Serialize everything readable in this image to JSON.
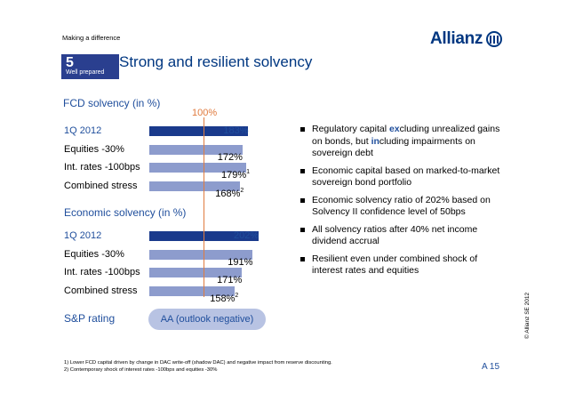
{
  "header": {
    "topline": "Making a difference",
    "logo": "Allianz"
  },
  "chapter": {
    "number": "5",
    "label": "Well prepared"
  },
  "title": "Strong and resilient solvency",
  "reference": {
    "label": "100%"
  },
  "fcd": {
    "title": "FCD solvency (in %)",
    "rows": [
      {
        "label": "1Q 2012",
        "value": "183%",
        "sup": ""
      },
      {
        "label": "Equities -30%",
        "value": "172%",
        "sup": ""
      },
      {
        "label": "Int. rates -100bps",
        "value": "179%",
        "sup": "1"
      },
      {
        "label": "Combined stress",
        "value": "168%",
        "sup": "2"
      }
    ]
  },
  "economic": {
    "title": "Economic solvency (in %)",
    "rows": [
      {
        "label": "1Q 2012",
        "value": "202%",
        "sup": ""
      },
      {
        "label": "Equities -30%",
        "value": "191%",
        "sup": ""
      },
      {
        "label": "Int. rates -100bps",
        "value": "171%",
        "sup": ""
      },
      {
        "label": "Combined stress",
        "value": "158%",
        "sup": "2"
      }
    ]
  },
  "rating": {
    "label": "S&P rating",
    "value": "AA (outlook negative)"
  },
  "bullets": {
    "b1_pre": "Regulatory capital ",
    "b1_hl1": "ex",
    "b1_mid": "cluding unrealized gains on bonds, but ",
    "b1_hl2": "in",
    "b1_post": "cluding impairments on sovereign debt",
    "b2": "Economic capital based on marked-to-market sovereign bond portfolio",
    "b3": "Economic solvency ratio of 202% based on Solvency II confidence level of 50bps",
    "b4": "All solvency ratios after 40% net income dividend accrual",
    "b5": "Resilient even under combined shock of interest rates and equities"
  },
  "footnotes": {
    "f1": "1)   Lower FCD capital driven by change in DAC write-off (shadow DAC) and negative impact from reserve discounting.",
    "f2": "2)   Contemporary shock of interest rates -100bps and equities -30%"
  },
  "copyright": "© Allianz SE 2012",
  "page": "A 15",
  "chart_data": {
    "type": "bar",
    "series": [
      {
        "name": "FCD solvency (in %)",
        "categories": [
          "1Q 2012",
          "Equities -30%",
          "Int. rates -100bps",
          "Combined stress"
        ],
        "values": [
          183,
          172,
          179,
          168
        ]
      },
      {
        "name": "Economic solvency (in %)",
        "categories": [
          "1Q 2012",
          "Equities -30%",
          "Int. rates -100bps",
          "Combined stress"
        ],
        "values": [
          202,
          191,
          171,
          158
        ]
      }
    ],
    "reference_line": 100
  }
}
